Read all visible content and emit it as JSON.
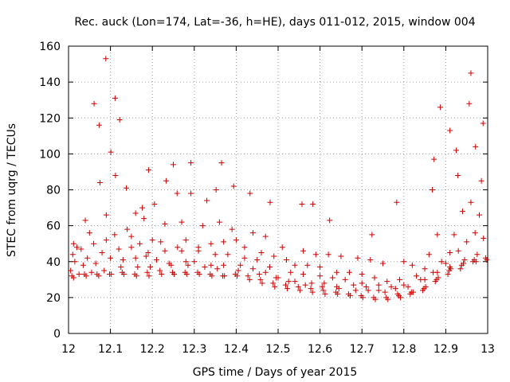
{
  "chart_data": {
    "type": "scatter",
    "title": "Rec. auck (Lon=174, Lat=-36, h=HE), days 011-012, 2015, window 004",
    "xlabel": "GPS time / Days of year 2015",
    "ylabel": "STEC from uqrg / TECUs",
    "xlim": [
      12,
      13
    ],
    "ylim": [
      0,
      160
    ],
    "xticks": [
      12,
      12.1,
      12.2,
      12.3,
      12.4,
      12.5,
      12.6,
      12.7,
      12.8,
      12.9,
      13
    ],
    "xtick_labels": [
      "12",
      "12.1",
      "12.2",
      "12.3",
      "12.4",
      "12.5",
      "12.6",
      "12.7",
      "12.8",
      "12.9",
      "13"
    ],
    "yticks": [
      0,
      20,
      40,
      60,
      80,
      100,
      120,
      140,
      160
    ],
    "ytick_labels": [
      "0",
      "20",
      "40",
      "60",
      "80",
      "100",
      "120",
      "140",
      "160"
    ],
    "grid": true,
    "marker": "+",
    "color": "#cc0000",
    "series": [
      {
        "x": [
          12.061,
          12.073,
          12.089,
          12.101,
          12.111,
          12.122,
          12.176,
          12.191,
          12.25,
          12.292,
          12.365,
          12.583,
          12.724,
          12.887,
          12.96,
          12.989,
          12.956,
          12.971,
          12.925,
          12.872,
          12.012,
          12.04,
          12.075,
          12.112,
          12.138,
          12.16,
          12.205,
          12.233,
          12.259,
          12.292,
          12.33,
          12.352,
          12.394,
          12.433,
          12.481,
          12.557,
          12.623,
          12.783,
          12.868,
          12.91,
          12.929,
          12.985,
          12.02,
          12.05,
          12.09,
          12.14,
          12.18,
          12.23,
          12.27,
          12.32,
          12.36,
          12.39,
          12.44,
          12.47,
          12.51,
          12.56,
          12.59,
          12.62,
          12.65,
          12.69,
          12.72,
          12.75,
          12.8,
          12.82,
          12.86,
          12.88,
          12.92,
          12.94,
          12.96,
          12.98,
          12.01,
          12.03,
          12.06,
          12.09,
          12.11,
          12.15,
          12.17,
          12.2,
          12.22,
          12.26,
          12.28,
          12.31,
          12.34,
          12.37,
          12.4,
          12.42,
          12.46,
          12.49,
          12.52,
          12.54,
          12.57,
          12.6,
          12.64,
          12.67,
          12.7,
          12.73,
          12.76,
          12.79,
          12.83,
          12.85,
          12.89,
          12.91,
          12.95,
          12.99,
          12.015,
          12.045,
          12.08,
          12.12,
          12.15,
          12.19,
          12.23,
          12.27,
          12.31,
          12.35,
          12.38,
          12.42,
          12.45,
          12.48,
          12.53,
          12.56,
          12.6,
          12.63,
          12.66,
          12.7,
          12.74,
          12.77,
          12.8,
          12.84,
          12.87,
          12.9,
          12.93,
          12.97,
          12.005,
          12.035,
          12.065,
          12.1,
          12.13,
          12.16,
          12.185,
          12.21,
          12.24,
          12.28,
          12.3,
          12.34,
          12.37,
          12.41,
          12.44,
          12.47,
          12.5,
          12.54,
          12.58,
          12.61,
          12.64,
          12.68,
          12.71,
          12.74,
          12.78,
          12.81,
          12.85,
          12.88,
          12.91,
          12.945,
          12.975,
          12.025,
          12.055,
          12.085,
          12.125,
          12.165,
          12.195,
          12.245,
          12.285,
          12.325,
          12.355,
          12.405,
          12.455,
          12.495,
          12.525,
          12.565,
          12.605,
          12.645,
          12.685,
          12.715,
          12.755,
          12.785,
          12.815,
          12.845,
          12.875,
          12.905,
          12.935,
          12.965,
          12.995,
          12.008,
          12.038,
          12.068,
          12.098,
          12.128,
          12.158,
          12.188,
          12.218,
          12.248,
          12.278,
          12.308,
          12.338,
          12.368,
          12.398,
          12.428,
          12.458,
          12.488,
          12.518,
          12.548,
          12.578,
          12.608,
          12.638,
          12.668,
          12.698,
          12.728,
          12.758,
          12.788,
          12.818,
          12.848,
          12.878,
          12.908,
          12.938,
          12.968,
          12.998,
          12.012,
          12.042,
          12.072,
          12.102,
          12.132,
          12.162,
          12.192,
          12.222,
          12.252,
          12.282,
          12.312,
          12.342,
          12.372,
          12.402,
          12.432,
          12.462,
          12.492,
          12.522,
          12.552,
          12.582,
          12.612,
          12.642,
          12.672,
          12.702,
          12.732,
          12.762,
          12.792,
          12.822,
          12.852,
          12.882,
          12.912,
          12.942,
          12.972
        ],
        "y": [
          128,
          116,
          153,
          101,
          131,
          119,
          70,
          91,
          94,
          95,
          95,
          72,
          55,
          126,
          145,
          117,
          128,
          104,
          102,
          97,
          50,
          63,
          84,
          88,
          81,
          67,
          72,
          85,
          78,
          78,
          74,
          80,
          82,
          78,
          73,
          72,
          63,
          73,
          80,
          113,
          88,
          85,
          48,
          56,
          66,
          58,
          64,
          61,
          62,
          60,
          62,
          58,
          56,
          54,
          48,
          46,
          44,
          44,
          43,
          42,
          41,
          39,
          40,
          38,
          44,
          55,
          55,
          68,
          73,
          66,
          44,
          47,
          50,
          52,
          55,
          54,
          50,
          52,
          51,
          48,
          52,
          48,
          50,
          51,
          52,
          48,
          45,
          43,
          41,
          38,
          38,
          37,
          34,
          34,
          33,
          31,
          29,
          30,
          32,
          36,
          40,
          45,
          51,
          53,
          40,
          42,
          45,
          47,
          48,
          45,
          46,
          46,
          46,
          44,
          44,
          42,
          41,
          37,
          34,
          33,
          32,
          31,
          30,
          28,
          27,
          26,
          27,
          30,
          34,
          39,
          46,
          56,
          35,
          38,
          39,
          42,
          41,
          42,
          43,
          41,
          39,
          40,
          40,
          38,
          38,
          38,
          36,
          34,
          31,
          29,
          28,
          28,
          26,
          27,
          26,
          24,
          25,
          26,
          30,
          34,
          37,
          41,
          44,
          33,
          34,
          35,
          37,
          37,
          37,
          38,
          38,
          37,
          36,
          35,
          33,
          31,
          29,
          27,
          26,
          25,
          24,
          24,
          23,
          22,
          22,
          24,
          29,
          33,
          36,
          40,
          42,
          32,
          33,
          33,
          33,
          34,
          33,
          34,
          35,
          34,
          34,
          34,
          33,
          32,
          33,
          32,
          30,
          28,
          27,
          26,
          25,
          24,
          23,
          22,
          21,
          20,
          20,
          21,
          23,
          25,
          30,
          35,
          38,
          41,
          41,
          31,
          32,
          32,
          33,
          33,
          32,
          32,
          33,
          33,
          33,
          33,
          32,
          32,
          32,
          30,
          28,
          26,
          25,
          24,
          23,
          22,
          22,
          21,
          20,
          19,
          19,
          20,
          23,
          26,
          31,
          36,
          39,
          40
        ]
      }
    ]
  }
}
